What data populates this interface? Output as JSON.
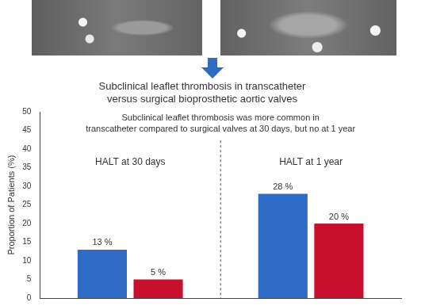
{
  "chart_data": {
    "type": "bar",
    "title": [
      "Subclinical leaflet thrombosis in transcatheter",
      "versus surgical bioprosthetic aortic valves"
    ],
    "annotation": [
      "Subclinical leaflet thrombosis was more common in",
      "transcatheter compared to surgical valves at 30 days, but no at 1 year"
    ],
    "y_label": "Proportion of Patients (%)",
    "categories": [
      "HALT at 30 days",
      "HALT at 1 year"
    ],
    "series": [
      {
        "color": "#2e6bc6",
        "values": [
          13,
          28
        ],
        "value_labels": [
          "13 %",
          "28 %"
        ]
      },
      {
        "color": "#c8102e",
        "values": [
          5,
          20
        ],
        "value_labels": [
          "5 %",
          "20 %"
        ]
      }
    ],
    "ylim": [
      0,
      50
    ],
    "yticks": [
      0,
      5,
      10,
      15,
      20,
      25,
      30,
      35,
      40,
      45,
      50
    ],
    "grid": false,
    "data_labels": true,
    "tick_labels": "y"
  }
}
